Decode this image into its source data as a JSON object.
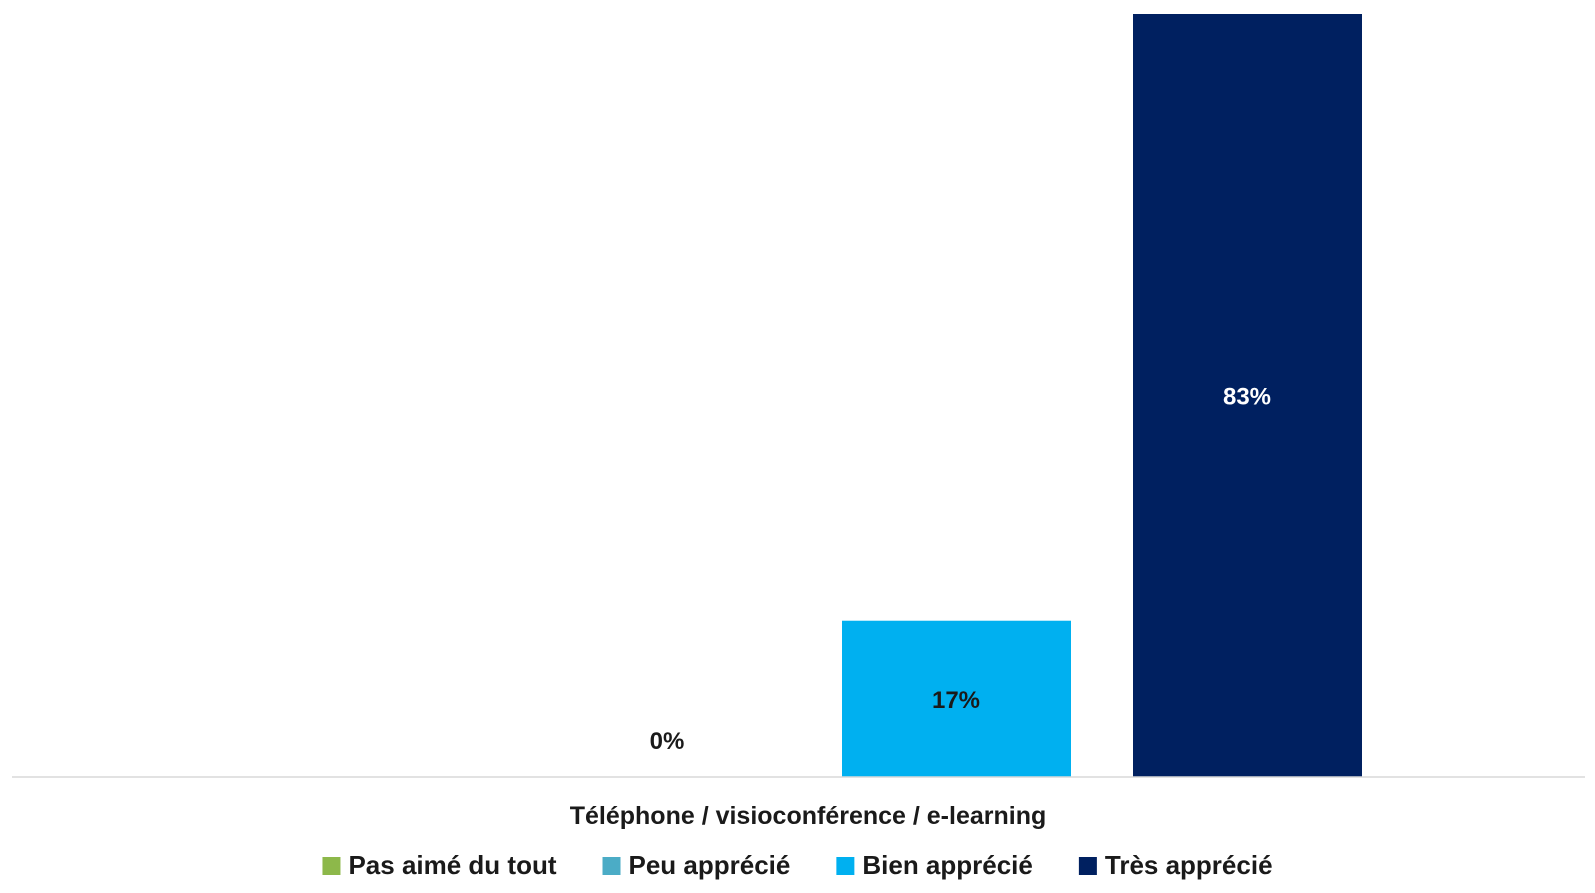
{
  "chart_data": {
    "type": "bar",
    "categories": [
      "Téléphone / visioconférence / e-learning"
    ],
    "series": [
      {
        "name": "Pas aimé du tout",
        "values": [
          0
        ],
        "color": "#8DB84A",
        "label": "",
        "label_color": "#1a1a1a"
      },
      {
        "name": "Peu apprécié",
        "values": [
          0
        ],
        "color": "#4BACC6",
        "label": "0%",
        "label_color": "#1a1a1a"
      },
      {
        "name": "Bien apprécié",
        "values": [
          17
        ],
        "color": "#00B0F0",
        "label": "17%",
        "label_color": "#1a1a1a"
      },
      {
        "name": "Très apprécié",
        "values": [
          83
        ],
        "color": "#002060",
        "label": "83%",
        "label_color": "#ffffff"
      }
    ],
    "unit": "%",
    "ylim": [
      0,
      83
    ],
    "grid": false,
    "legend_position": "bottom",
    "axis_color": "#d9d9d9"
  }
}
